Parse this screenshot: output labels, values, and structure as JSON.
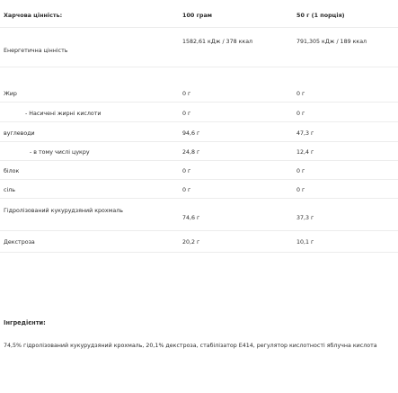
{
  "table": {
    "header": {
      "label": "Харчова цінність:",
      "col1": "100 грам",
      "col2": "50 г (1 порція)"
    },
    "rows": [
      {
        "label": "Енергетична цінність",
        "v1": "1582,61 кДж / 378 ккал",
        "v2": "791,305 кДж / 189 ккал",
        "indent": 0
      },
      {
        "label": "Жир",
        "v1": "0 г",
        "v2": "0 г",
        "indent": 0
      },
      {
        "label": "- Насичені жирні кислоти",
        "v1": "0 г",
        "v2": "0 г",
        "indent": 1
      },
      {
        "label": "вуглеводи",
        "v1": "94,6 г",
        "v2": "47,3 г",
        "indent": 0
      },
      {
        "label": "- в тому числі цукру",
        "v1": "24,8 г",
        "v2": "12,4 г",
        "indent": 2
      },
      {
        "label": "білок",
        "v1": "0 г",
        "v2": "0 г",
        "indent": 0
      },
      {
        "label": "сіль",
        "v1": "0 г",
        "v2": "0 г",
        "indent": 0
      },
      {
        "label": "Гідролізований кукурудзяний крохмаль",
        "v1": "74,6 г",
        "v2": "37,3 г",
        "indent": 0
      },
      {
        "label": "Декстроза",
        "v1": "20,2 г",
        "v2": "10,1 г",
        "indent": 0
      }
    ]
  },
  "ingredients": {
    "title": "Інгредієнти:",
    "text": "74,5% гідролізований кукурудзяний крохмаль, 20,1% декстроза, стабілізатор Е414, регулятор кислотності яблучна кислота"
  }
}
